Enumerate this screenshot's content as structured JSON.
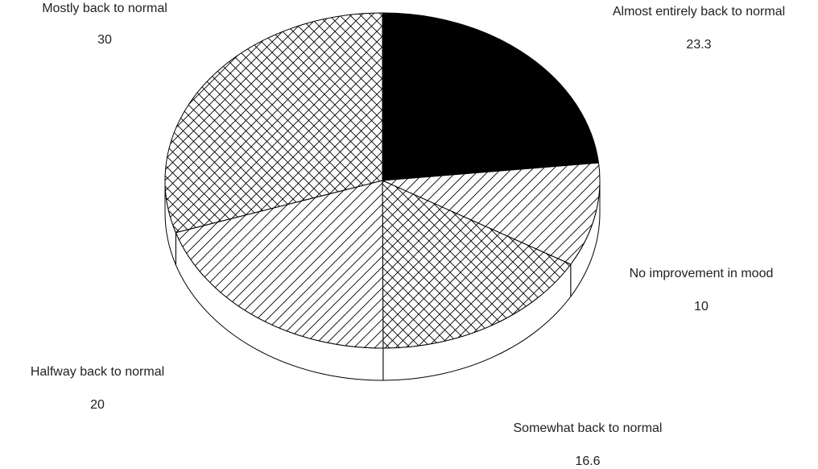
{
  "chart_data": {
    "type": "pie",
    "style": "3d",
    "title": "",
    "slices": [
      {
        "label": "Almost entirely back to normal",
        "value": 23.3,
        "fill": "solid-black"
      },
      {
        "label": "No improvement in mood",
        "value": 10,
        "fill": "diagonal-hatch"
      },
      {
        "label": "Somewhat back to normal",
        "value": 16.6,
        "fill": "crosshatch"
      },
      {
        "label": "Halfway back to normal",
        "value": 20,
        "fill": "diagonal-hatch"
      },
      {
        "label": "Mostly back to normal",
        "value": 30,
        "fill": "crosshatch"
      }
    ],
    "value_labels": [
      "23.3",
      "10",
      "16.6",
      "20",
      "30"
    ],
    "start_direction": "top",
    "direction": "clockwise",
    "legend": "none",
    "colors": {
      "ink": "#000000",
      "background": "#ffffff"
    }
  }
}
